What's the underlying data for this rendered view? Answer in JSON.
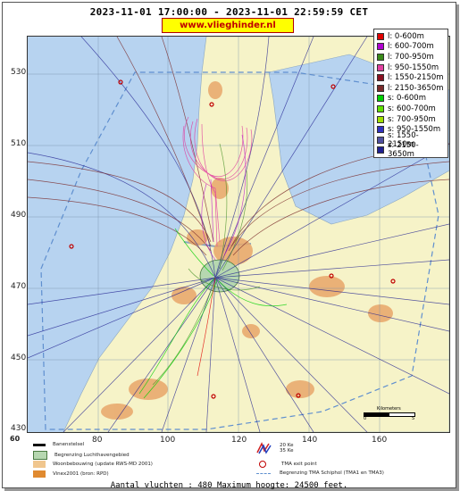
{
  "header": {
    "period": "2023-11-01 17:00:00 - 2023-11-01 22:59:59 CET",
    "site": "www.vlieghinder.nl"
  },
  "axes": {
    "y_ticks": [
      "530",
      "510",
      "490",
      "470",
      "450",
      "430"
    ],
    "x_ticks": [
      "80",
      "100",
      "120",
      "140",
      "160"
    ]
  },
  "legend": [
    {
      "label": "l: 0-600m",
      "color": "#e00000"
    },
    {
      "label": "l: 600-700m",
      "color": "#b000d0"
    },
    {
      "label": "l: 700-950m",
      "color": "#3a8a1a"
    },
    {
      "label": "l: 950-1550m",
      "color": "#e040a0"
    },
    {
      "label": "l: 1550-2150m",
      "color": "#8a1020"
    },
    {
      "label": "l: 2150-3650m",
      "color": "#7a2a2a"
    },
    {
      "label": "s: 0-600m",
      "color": "#00d000"
    },
    {
      "label": "s: 600-700m",
      "color": "#60e000"
    },
    {
      "label": "s: 700-950m",
      "color": "#a0e000"
    },
    {
      "label": "s: 950-1550m",
      "color": "#3030c0"
    },
    {
      "label": "s: 1550-2150m",
      "color": "#5050a0"
    },
    {
      "label": "s: 2150-3650m",
      "color": "#202090"
    }
  ],
  "bottom_legend": {
    "runway": "Banenstelsel",
    "airport_area": "Begrenzing Luchthavengebied",
    "housing": "Woonbebouwing (update RWS-MD 2001)",
    "vinex": "Vinex2001 (bron: RPD)",
    "noise_20": "20 Ke",
    "noise_35": "35 Ke",
    "tma_exit": "TMA exit point",
    "tma_border": "Begrenzing TMA Schiphol  (TMA1 en TMA3)",
    "corner_number": "60"
  },
  "scalebar": {
    "label": "Kilometers",
    "ticks": [
      "0",
      "5"
    ]
  },
  "footer": {
    "text": "Aantal vluchten : 480 Maximum hoogte: 24500 feet."
  },
  "colors": {
    "water": "#b7d3f0",
    "land": "#f6f3c8",
    "urban": "#e8a66a",
    "airport": "#b6d7b0"
  }
}
